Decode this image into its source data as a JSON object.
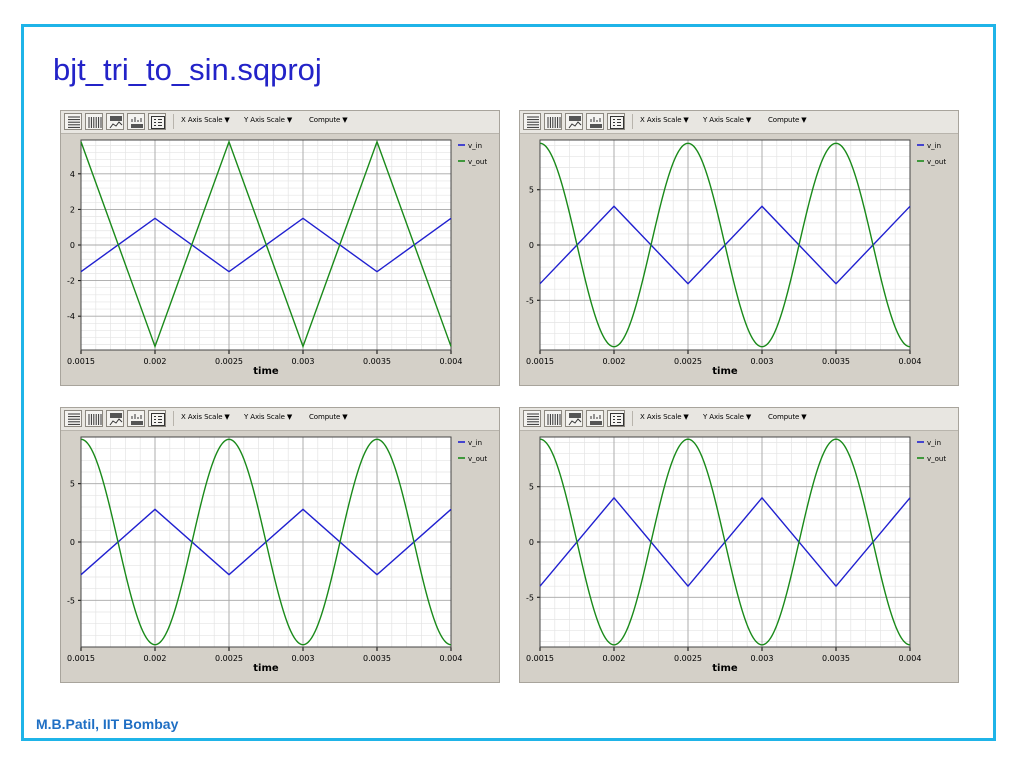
{
  "slide": {
    "title": "bjt_tri_to_sin.sqproj",
    "footer": "M.B.Patil, IIT Bombay"
  },
  "toolbar": {
    "x_axis_scale": "X Axis Scale",
    "y_axis_scale": "Y Axis Scale",
    "compute": "Compute"
  },
  "colors": {
    "v_in": "#2020d0",
    "v_out": "#1a8a1a",
    "accent": "#1fb4e8"
  },
  "chart_data": [
    {
      "type": "line",
      "xlabel": "time",
      "xlim": [
        0.0015,
        0.004
      ],
      "ylim": [
        -5.9,
        5.9
      ],
      "x_ticks": [
        "0.0015",
        "0.002",
        "0.0025",
        "0.003",
        "0.0035",
        "0.004"
      ],
      "y_ticks": [
        -4,
        -2,
        0,
        2,
        4
      ],
      "legend_position": "top-right",
      "series": [
        {
          "name": "v_in",
          "x": [
            0.0015,
            0.002,
            0.0025,
            0.003,
            0.0035,
            0.004
          ],
          "values": [
            -1.5,
            1.5,
            -1.5,
            1.5,
            -1.5,
            1.5
          ]
        },
        {
          "name": "v_out",
          "x": [
            0.0015,
            0.002,
            0.0025,
            0.003,
            0.0035,
            0.004
          ],
          "values": [
            5.8,
            -5.7,
            5.8,
            -5.7,
            5.8,
            -5.7
          ]
        }
      ]
    },
    {
      "type": "line",
      "xlabel": "time",
      "xlim": [
        0.0015,
        0.004
      ],
      "ylim": [
        -9.5,
        9.5
      ],
      "x_ticks": [
        "0.0015",
        "0.002",
        "0.0025",
        "0.003",
        "0.0035",
        "0.004"
      ],
      "y_ticks": [
        -5,
        0,
        5
      ],
      "legend_position": "top-right",
      "series": [
        {
          "name": "v_in",
          "x": [
            0.0015,
            0.002,
            0.0025,
            0.003,
            0.0035,
            0.004
          ],
          "values": [
            -3.5,
            3.5,
            -3.5,
            3.5,
            -3.5,
            3.5
          ]
        },
        {
          "name": "v_out",
          "x": [
            0.0015,
            0.002,
            0.0025,
            0.003,
            0.0035,
            0.004
          ],
          "values": [
            9.2,
            -9.2,
            9.2,
            -9.2,
            9.2,
            -9.2
          ]
        }
      ]
    },
    {
      "type": "line",
      "xlabel": "time",
      "xlim": [
        0.0015,
        0.004
      ],
      "ylim": [
        -9.0,
        9.0
      ],
      "x_ticks": [
        "0.0015",
        "0.002",
        "0.0025",
        "0.003",
        "0.0035",
        "0.004"
      ],
      "y_ticks": [
        -5,
        0,
        5
      ],
      "legend_position": "top-right",
      "series": [
        {
          "name": "v_in",
          "x": [
            0.0015,
            0.002,
            0.0025,
            0.003,
            0.0035,
            0.004
          ],
          "values": [
            -2.8,
            2.8,
            -2.8,
            2.8,
            -2.8,
            2.8
          ]
        },
        {
          "name": "v_out",
          "x": [
            0.0015,
            0.002,
            0.0025,
            0.003,
            0.0035,
            0.004
          ],
          "values": [
            8.8,
            -8.8,
            8.8,
            -8.8,
            8.8,
            -8.8
          ]
        }
      ]
    },
    {
      "type": "line",
      "xlabel": "time",
      "xlim": [
        0.0015,
        0.004
      ],
      "ylim": [
        -9.5,
        9.5
      ],
      "x_ticks": [
        "0.0015",
        "0.002",
        "0.0025",
        "0.003",
        "0.0035",
        "0.004"
      ],
      "y_ticks": [
        -5,
        0,
        5
      ],
      "legend_position": "top-right",
      "series": [
        {
          "name": "v_in",
          "x": [
            0.0015,
            0.002,
            0.0025,
            0.003,
            0.0035,
            0.004
          ],
          "values": [
            -4.0,
            4.0,
            -4.0,
            4.0,
            -4.0,
            4.0
          ]
        },
        {
          "name": "v_out",
          "x": [
            0.0015,
            0.002,
            0.0025,
            0.003,
            0.0035,
            0.004
          ],
          "values": [
            9.3,
            -9.3,
            9.3,
            -9.3,
            9.3,
            -9.3
          ]
        }
      ]
    }
  ]
}
